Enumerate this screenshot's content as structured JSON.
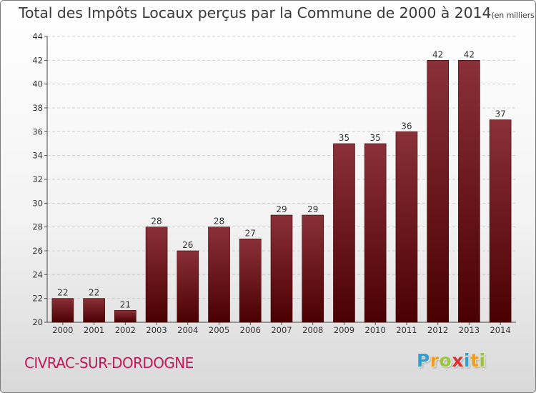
{
  "title": "Total des Impôts Locaux perçus par la Commune de 2000 à 2014",
  "unit": "(en milliers d'€)",
  "commune": "CIVRAC-SUR-DORDOGNE",
  "logo": {
    "letters": [
      "P",
      "r",
      "o",
      "x",
      "i",
      "t",
      "i"
    ],
    "colors": [
      "#2e9fd6",
      "#f39a1f",
      "#9bc53d",
      "#e2312b",
      "#2e9fd6",
      "#f39a1f",
      "#9bc53d"
    ]
  },
  "colors": {
    "bar_top": "#8a3038",
    "bar_bottom": "#4a0000",
    "text": "#333333",
    "commune": "#c2185b"
  },
  "chart_data": {
    "type": "bar",
    "categories": [
      "2000",
      "2001",
      "2002",
      "2003",
      "2004",
      "2005",
      "2006",
      "2007",
      "2008",
      "2009",
      "2010",
      "2011",
      "2012",
      "2013",
      "2014"
    ],
    "values": [
      22,
      22,
      21,
      28,
      26,
      28,
      27,
      29,
      29,
      35,
      35,
      36,
      42,
      42,
      37
    ],
    "ylim": [
      20,
      44
    ],
    "yticks": [
      20,
      22,
      24,
      26,
      28,
      30,
      32,
      34,
      36,
      38,
      40,
      42,
      44
    ],
    "grid": true,
    "xlabel": "",
    "ylabel": ""
  }
}
